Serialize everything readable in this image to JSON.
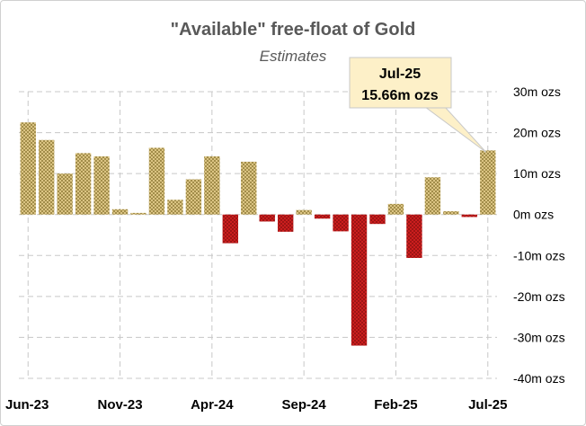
{
  "chart_data": {
    "type": "bar",
    "title": "\"Available\" free-float of Gold",
    "subtitle": "Estimates",
    "ylim": [
      -40,
      30
    ],
    "yticks": [
      {
        "value": 30,
        "label": "30m ozs"
      },
      {
        "value": 20,
        "label": "20m ozs"
      },
      {
        "value": 10,
        "label": "10m ozs"
      },
      {
        "value": 0,
        "label": "0m ozs"
      },
      {
        "value": -10,
        "label": "-10m ozs"
      },
      {
        "value": -20,
        "label": "-20m ozs"
      },
      {
        "value": -30,
        "label": "-30m ozs"
      },
      {
        "value": -40,
        "label": "-40m ozs"
      }
    ],
    "categories": [
      "Jun-23",
      "Jul-23",
      "Aug-23",
      "Sep-23",
      "Oct-23",
      "Nov-23",
      "Dec-23",
      "Jan-24",
      "Feb-24",
      "Mar-24",
      "Apr-24",
      "May-24",
      "Jun-24",
      "Jul-24",
      "Aug-24",
      "Sep-24",
      "Oct-24",
      "Nov-24",
      "Dec-24",
      "Jan-25",
      "Feb-25",
      "Mar-25",
      "Apr-25",
      "May-25",
      "Jun-25",
      "Jul-25"
    ],
    "values": [
      22.5,
      18.2,
      10.0,
      15.0,
      14.2,
      1.3,
      0.4,
      16.3,
      3.6,
      8.6,
      14.2,
      -7.0,
      12.9,
      -1.7,
      -4.2,
      1.1,
      -1.0,
      -4.1,
      -32.0,
      -2.3,
      2.6,
      -10.6,
      9.1,
      0.8,
      -0.6,
      15.66
    ],
    "xtick_labels": [
      {
        "index": 0,
        "label": "Jun-23"
      },
      {
        "index": 5,
        "label": "Nov-23"
      },
      {
        "index": 10,
        "label": "Apr-24"
      },
      {
        "index": 15,
        "label": "Sep-24"
      },
      {
        "index": 20,
        "label": "Feb-25"
      },
      {
        "index": 25,
        "label": "Jul-25"
      }
    ],
    "grid": true,
    "colors": {
      "positive": "#e6cf8f",
      "positive_hatch": "#8a7632",
      "negative": "#d42020",
      "negative_hatch": "#8a1010",
      "grid": "#c8c8c8",
      "callout_fill": "#fdf0c8",
      "callout_border": "#c8c8c8"
    },
    "callout": {
      "index": 25,
      "line1": "Jul-25",
      "line2": "15.66m ozs"
    }
  }
}
